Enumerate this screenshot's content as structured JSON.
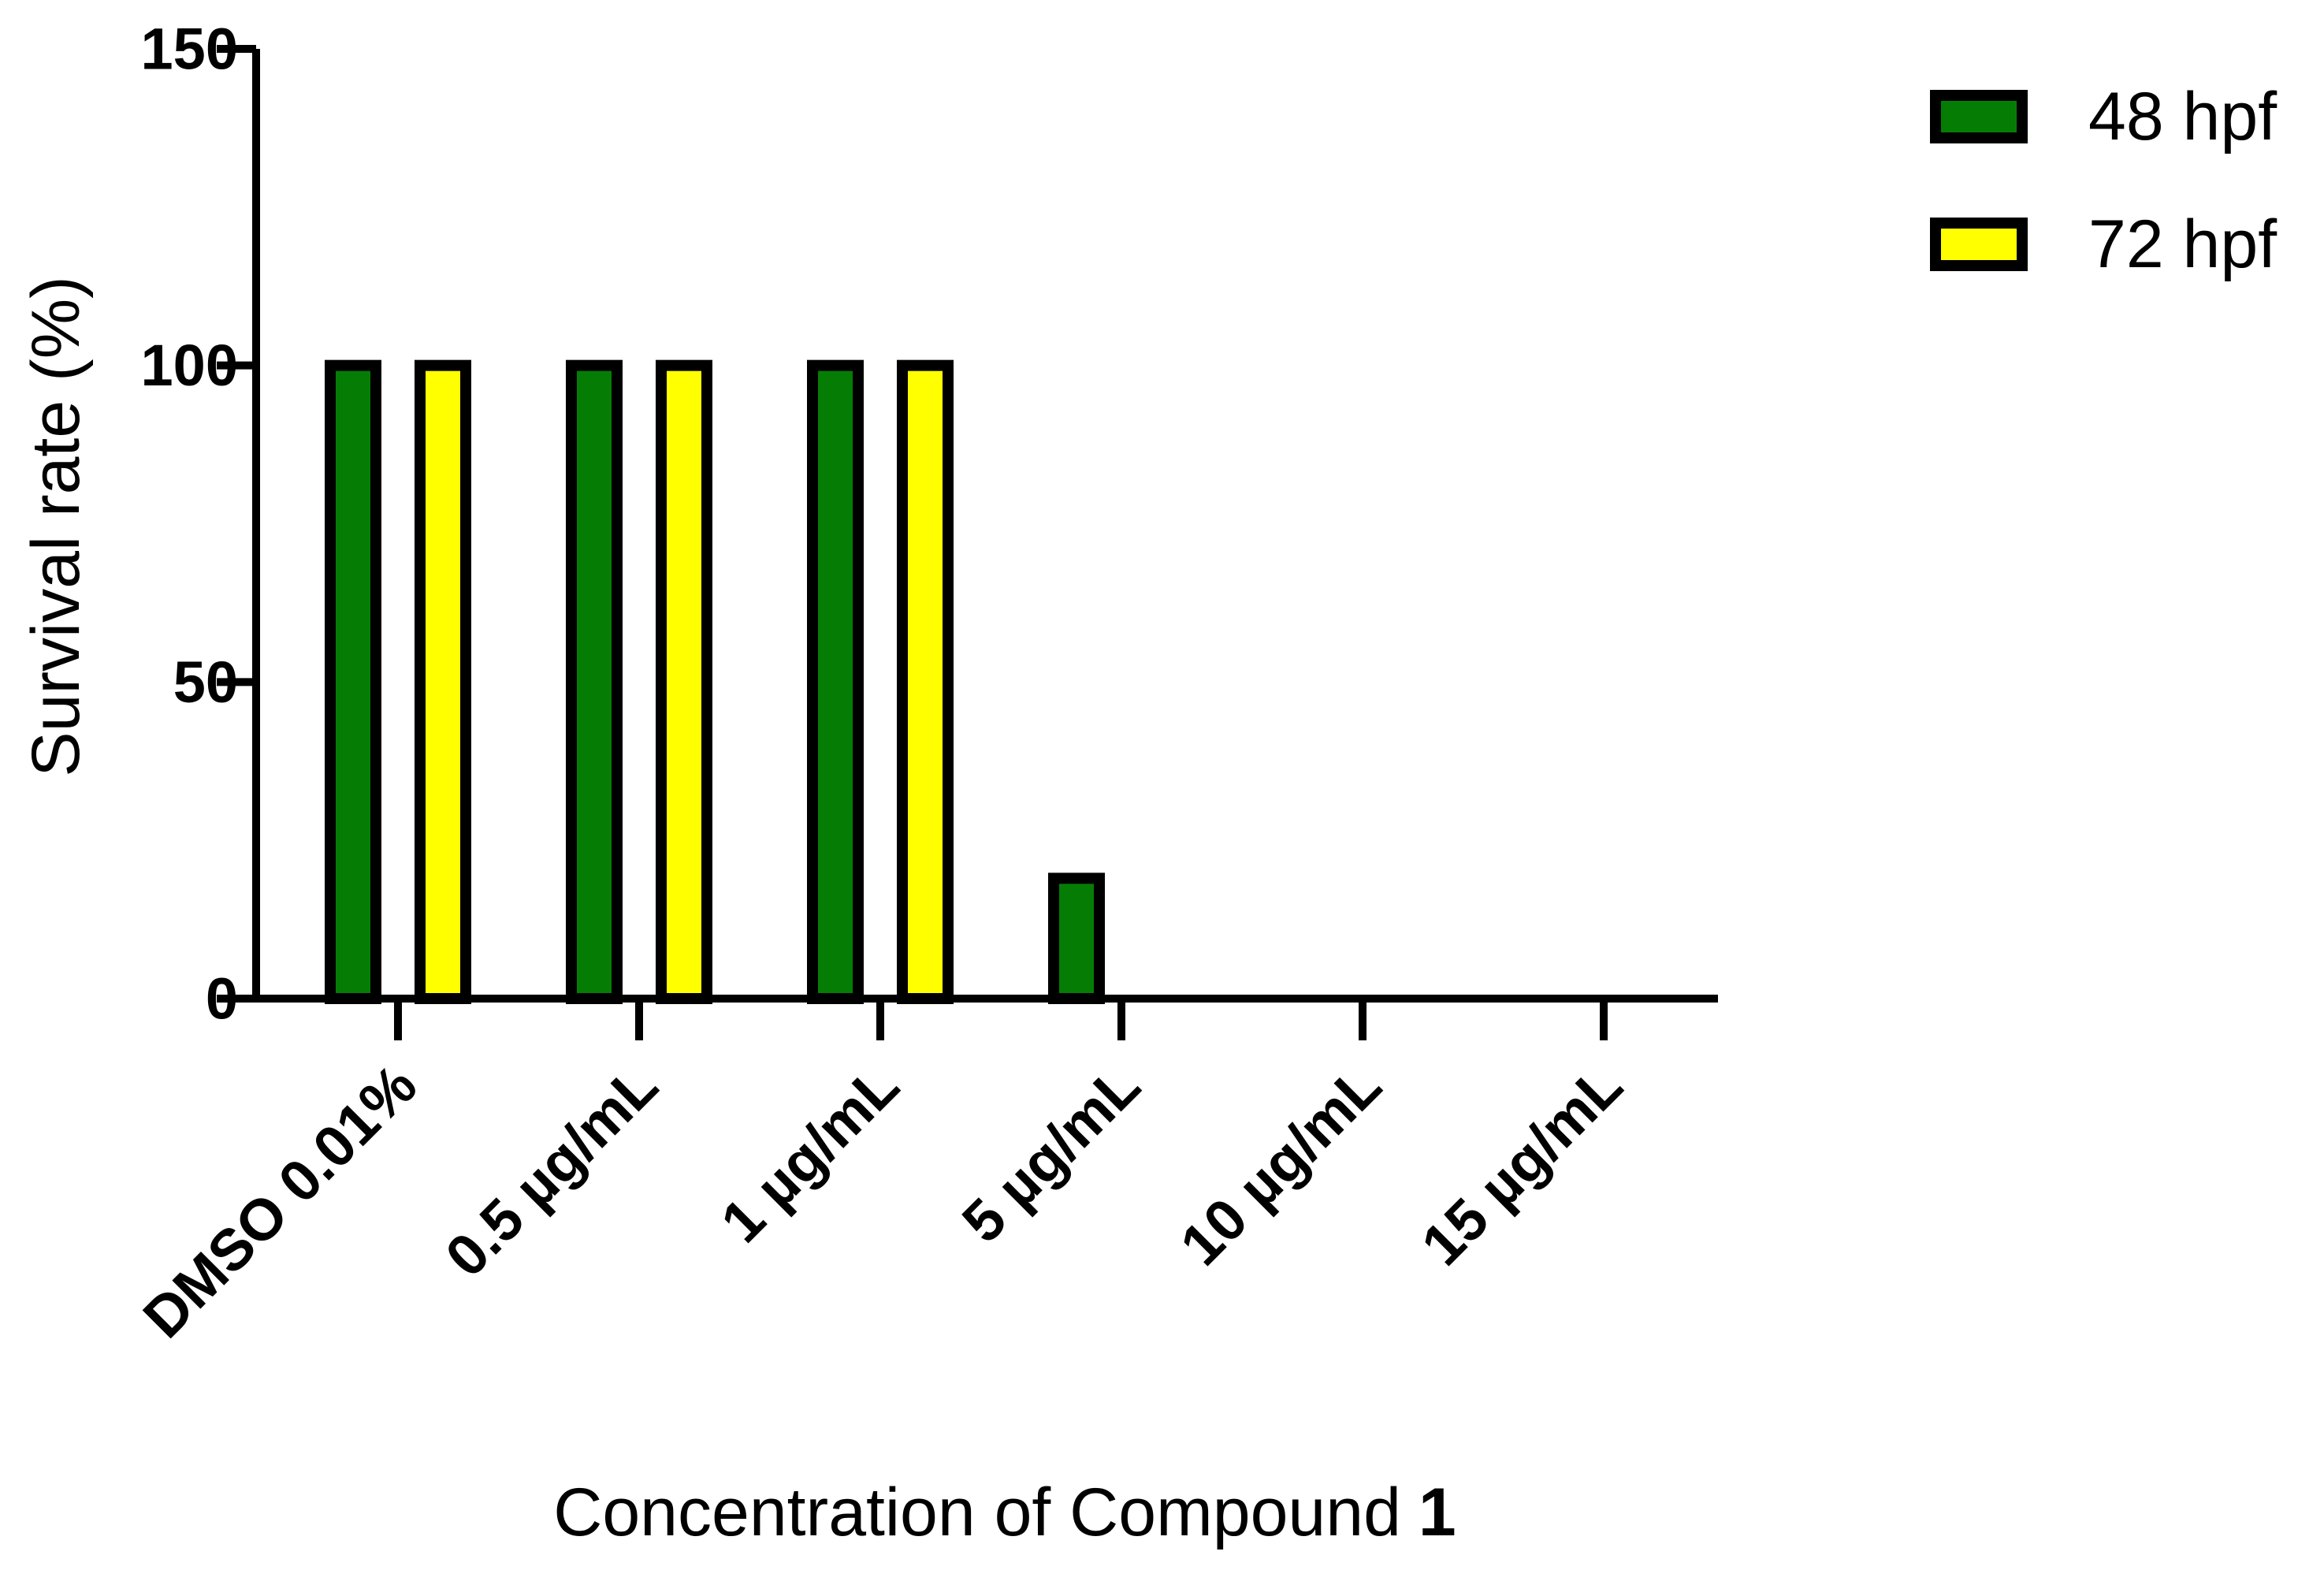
{
  "chart_data": {
    "type": "bar",
    "categories": [
      "DMSO 0.01%",
      "0.5 µg/mL",
      "1 µg/mL",
      "5 µg/mL",
      "10 µg/mL",
      "15 µg/mL"
    ],
    "series": [
      {
        "name": "48 hpf",
        "color": "#057d05",
        "values": [
          100,
          100,
          100,
          19,
          0,
          0
        ]
      },
      {
        "name": "72 hpf",
        "color": "#ffff00",
        "values": [
          100,
          100,
          100,
          0,
          0,
          0
        ]
      }
    ],
    "ylabel": "Survival rate (%)",
    "xlabel": "Concentration of Compound",
    "xlabel_bold_suffix": "1",
    "ylim": [
      0,
      150
    ],
    "yticks": [
      "0",
      "50",
      "100",
      "150"
    ],
    "legend_position": "top-right",
    "grid": false,
    "bar_outline_color": "#000000"
  }
}
